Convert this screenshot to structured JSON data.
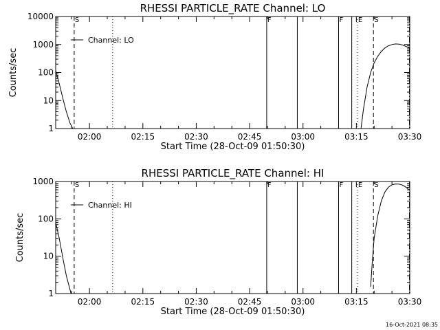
{
  "stamp": "16-Oct-2021 08:35",
  "chart_data": [
    {
      "type": "line",
      "title": "RHESSI PARTICLE_RATE Channel: LO",
      "xlabel": "Start Time (28-Oct-09 01:50:30)",
      "ylabel": "Counts/sec",
      "yscale": "log",
      "ylim": [
        1,
        10000
      ],
      "yticks": [
        1,
        10,
        100,
        1000,
        10000
      ],
      "ytick_labels": [
        "1",
        "10",
        "100",
        "1000",
        "10000"
      ],
      "xlim_min": [
        110.5,
        210.0
      ],
      "xticks_min": [
        120,
        135,
        150,
        165,
        180,
        195,
        210
      ],
      "xtick_labels": [
        "02:00",
        "02:15",
        "02:30",
        "02:45",
        "03:00",
        "03:15",
        "03:30"
      ],
      "legend": "Channel: LO",
      "series": [
        {
          "points": [
            [
              110.5,
              120
            ],
            [
              111.5,
              40
            ],
            [
              112.5,
              12
            ],
            [
              113.5,
              4
            ],
            [
              114.5,
              1.6
            ],
            [
              115.3,
              1
            ]
          ]
        },
        {
          "points": [
            [
              196.3,
              1
            ],
            [
              197.0,
              5
            ],
            [
              198.0,
              30
            ],
            [
              199.0,
              100
            ],
            [
              200.0,
              220
            ],
            [
              201.0,
              380
            ],
            [
              202.0,
              560
            ],
            [
              203.0,
              750
            ],
            [
              204.0,
              900
            ],
            [
              205.0,
              1000
            ],
            [
              206.0,
              1050
            ],
            [
              207.0,
              1030
            ],
            [
              208.0,
              960
            ],
            [
              209.0,
              850
            ],
            [
              209.8,
              750
            ]
          ]
        }
      ],
      "markers": [
        {
          "t": 115.7,
          "style": "dashed",
          "label": "S"
        },
        {
          "t": 126.5,
          "style": "dotted",
          "label": ""
        },
        {
          "t": 169.8,
          "style": "solid",
          "label": "F"
        },
        {
          "t": 178.4,
          "style": "solid",
          "label": ""
        },
        {
          "t": 190.0,
          "style": "solid",
          "label": "F"
        },
        {
          "t": 193.7,
          "style": "solid",
          "label": ""
        },
        {
          "t": 195.3,
          "style": "dotted",
          "label": "E"
        },
        {
          "t": 199.8,
          "style": "dashed",
          "label": "S"
        },
        {
          "t": 209.9,
          "style": "dashdot",
          "label": ""
        }
      ]
    },
    {
      "type": "line",
      "title": "RHESSI PARTICLE_RATE Channel: HI",
      "xlabel": "Start Time (28-Oct-09 01:50:30)",
      "ylabel": "Counts/sec",
      "yscale": "log",
      "ylim": [
        1,
        1000
      ],
      "yticks": [
        1,
        10,
        100,
        1000
      ],
      "ytick_labels": [
        "1",
        "10",
        "100",
        "1000"
      ],
      "xlim_min": [
        110.5,
        210.0
      ],
      "xticks_min": [
        120,
        135,
        150,
        165,
        180,
        195,
        210
      ],
      "xtick_labels": [
        "02:00",
        "02:15",
        "02:30",
        "02:45",
        "03:00",
        "03:15",
        "03:30"
      ],
      "legend": "Channel: HI",
      "series": [
        {
          "points": [
            [
              110.5,
              80
            ],
            [
              111.5,
              30
            ],
            [
              112.5,
              9
            ],
            [
              113.5,
              3
            ],
            [
              114.5,
              1.3
            ],
            [
              114.8,
              1
            ]
          ]
        },
        {
          "points": [
            [
              199.0,
              1.5
            ],
            [
              199.5,
              8
            ],
            [
              200.0,
              30
            ],
            [
              201.0,
              120
            ],
            [
              202.0,
              300
            ],
            [
              203.0,
              520
            ],
            [
              204.0,
              700
            ],
            [
              205.0,
              820
            ],
            [
              206.0,
              860
            ],
            [
              207.0,
              850
            ],
            [
              208.0,
              800
            ],
            [
              209.0,
              700
            ],
            [
              209.8,
              600
            ]
          ]
        }
      ],
      "markers": [
        {
          "t": 115.7,
          "style": "dashed",
          "label": "S"
        },
        {
          "t": 126.5,
          "style": "dotted",
          "label": ""
        },
        {
          "t": 169.8,
          "style": "solid",
          "label": "F"
        },
        {
          "t": 178.4,
          "style": "solid",
          "label": ""
        },
        {
          "t": 190.0,
          "style": "solid",
          "label": "F"
        },
        {
          "t": 193.7,
          "style": "solid",
          "label": ""
        },
        {
          "t": 195.3,
          "style": "dotted",
          "label": "E"
        },
        {
          "t": 199.8,
          "style": "dashed",
          "label": "S"
        },
        {
          "t": 209.9,
          "style": "dashdot",
          "label": ""
        }
      ]
    }
  ]
}
